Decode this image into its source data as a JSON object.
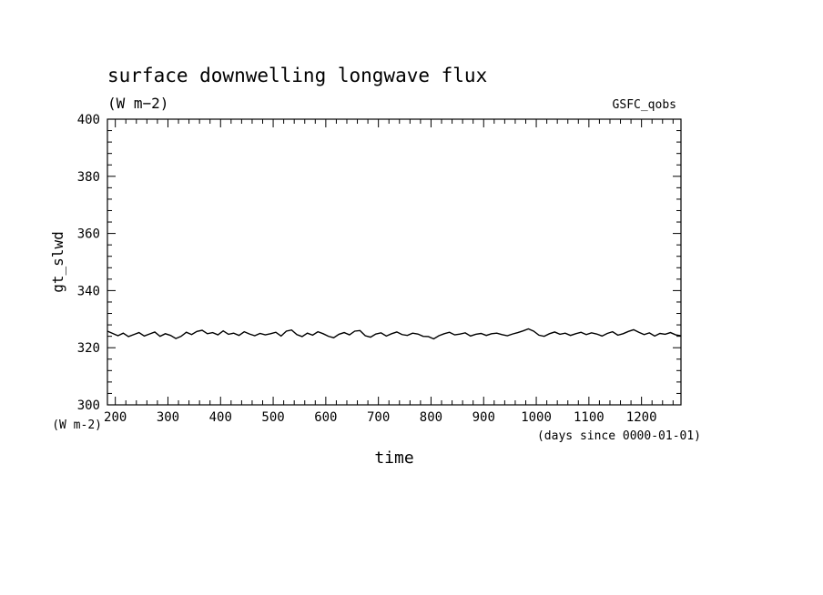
{
  "chart_data": {
    "type": "line",
    "title": "surface downwelling longwave flux",
    "subtitle": "(W m−2)",
    "source_label": "GSFC_qobs",
    "xlabel": "time",
    "xunits": "(days since 0000-01-01)",
    "ylabel": "gt_slwd",
    "yunits": "(W m-2)",
    "xlim": [
      185,
      1275
    ],
    "ylim": [
      300,
      400
    ],
    "x_ticks": [
      200,
      300,
      400,
      500,
      600,
      700,
      800,
      900,
      1000,
      1100,
      1200
    ],
    "y_ticks": [
      300,
      320,
      340,
      360,
      380,
      400
    ],
    "grid": false,
    "series": [
      {
        "x": [
          185,
          195,
          205,
          215,
          225,
          235,
          245,
          255,
          265,
          275,
          285,
          295,
          305,
          315,
          325,
          335,
          345,
          355,
          365,
          375,
          385,
          395,
          405,
          415,
          425,
          435,
          445,
          455,
          465,
          475,
          485,
          495,
          505,
          515,
          525,
          535,
          545,
          555,
          565,
          575,
          585,
          595,
          605,
          615,
          625,
          635,
          645,
          655,
          665,
          675,
          685,
          695,
          705,
          715,
          725,
          735,
          745,
          755,
          765,
          775,
          785,
          795,
          805,
          815,
          825,
          835,
          845,
          855,
          865,
          875,
          885,
          895,
          905,
          915,
          925,
          935,
          945,
          955,
          965,
          975,
          985,
          995,
          1005,
          1015,
          1025,
          1035,
          1045,
          1055,
          1065,
          1075,
          1085,
          1095,
          1105,
          1115,
          1125,
          1135,
          1145,
          1155,
          1165,
          1175,
          1185,
          1195,
          1205,
          1215,
          1225,
          1235,
          1245,
          1255,
          1265,
          1275
        ],
        "values": [
          325.8,
          325.0,
          324.2,
          325.1,
          323.9,
          324.6,
          325.3,
          324.1,
          324.8,
          325.5,
          324.0,
          324.9,
          324.3,
          323.2,
          324.0,
          325.4,
          324.6,
          325.7,
          326.1,
          324.9,
          325.3,
          324.5,
          325.9,
          324.7,
          325.1,
          324.3,
          325.6,
          324.8,
          324.2,
          325.0,
          324.5,
          324.9,
          325.4,
          324.1,
          325.8,
          326.2,
          324.6,
          323.9,
          325.1,
          324.4,
          325.6,
          324.9,
          324.0,
          323.5,
          324.7,
          325.3,
          324.5,
          325.8,
          326.0,
          324.2,
          323.7,
          324.8,
          325.2,
          324.1,
          324.9,
          325.5,
          324.6,
          324.3,
          325.1,
          324.8,
          324.0,
          323.9,
          323.1,
          324.2,
          324.9,
          325.4,
          324.5,
          324.8,
          325.2,
          324.1,
          324.7,
          325.0,
          324.3,
          324.9,
          325.1,
          324.6,
          324.2,
          324.8,
          325.3,
          325.9,
          326.6,
          325.8,
          324.4,
          324.0,
          324.9,
          325.5,
          324.7,
          325.1,
          324.3,
          324.9,
          325.4,
          324.6,
          325.2,
          324.8,
          324.1,
          325.0,
          325.6,
          324.4,
          324.9,
          325.7,
          326.3,
          325.4,
          324.6,
          325.2,
          324.1,
          325.0,
          324.7,
          325.3,
          324.5,
          324.2
        ]
      }
    ]
  }
}
